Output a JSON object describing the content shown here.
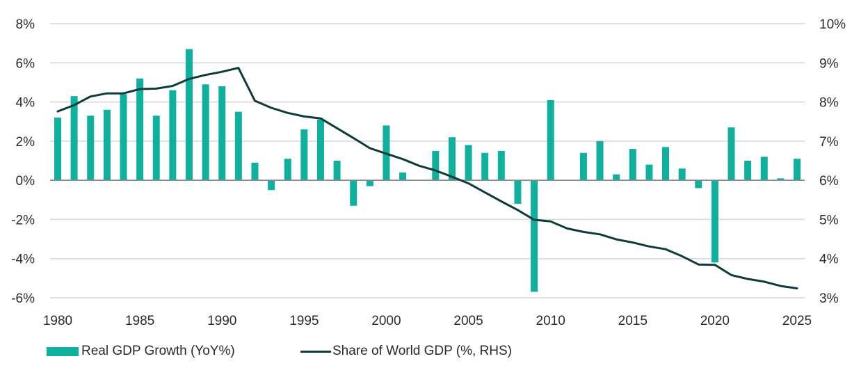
{
  "chart_data": {
    "type": "bar",
    "title": "",
    "xlabel": "",
    "ylabel": "",
    "y2label": "",
    "grid": true,
    "legend_position": "bottom-left",
    "x": [
      1980,
      1981,
      1982,
      1983,
      1984,
      1985,
      1986,
      1987,
      1988,
      1989,
      1990,
      1991,
      1992,
      1993,
      1994,
      1995,
      1996,
      1997,
      1998,
      1999,
      2000,
      2001,
      2002,
      2003,
      2004,
      2005,
      2006,
      2007,
      2008,
      2009,
      2010,
      2011,
      2012,
      2013,
      2014,
      2015,
      2016,
      2017,
      2018,
      2019,
      2020,
      2021,
      2022,
      2023,
      2024,
      2025
    ],
    "xlim": [
      1980,
      2025
    ],
    "x_ticks": [
      "1980",
      "1985",
      "1990",
      "1995",
      "2000",
      "2005",
      "2010",
      "2015",
      "2020",
      "2025"
    ],
    "x_tick_values": [
      1980,
      1985,
      1990,
      1995,
      2000,
      2005,
      2010,
      2015,
      2020,
      2025
    ],
    "ylim": [
      -6,
      8
    ],
    "y_ticks": [
      "-6%",
      "-4%",
      "-2%",
      "0%",
      "2%",
      "4%",
      "6%",
      "8%"
    ],
    "y_tick_values": [
      -6,
      -4,
      -2,
      0,
      2,
      4,
      6,
      8
    ],
    "y2lim": [
      3,
      10
    ],
    "y2_ticks": [
      "3%",
      "4%",
      "5%",
      "6%",
      "7%",
      "8%",
      "9%",
      "10%"
    ],
    "y2_tick_values": [
      3,
      4,
      5,
      6,
      7,
      8,
      9,
      10
    ],
    "series": [
      {
        "name": "Real GDP Growth (YoY%)",
        "type": "bar",
        "axis": "left",
        "color": "#10b09e",
        "values": [
          3.2,
          4.3,
          3.3,
          3.6,
          4.4,
          5.2,
          3.3,
          4.6,
          6.7,
          4.9,
          4.8,
          3.5,
          0.9,
          -0.5,
          1.1,
          2.6,
          3.1,
          1.0,
          -1.3,
          -0.3,
          2.8,
          0.4,
          0.0,
          1.5,
          2.2,
          1.8,
          1.4,
          1.5,
          -1.2,
          -5.7,
          4.1,
          0.0,
          1.4,
          2.0,
          0.3,
          1.6,
          0.8,
          1.7,
          0.6,
          -0.4,
          -4.2,
          2.7,
          1.0,
          1.2,
          0.1,
          1.1
        ]
      },
      {
        "name": "Share of World GDP (%, RHS)",
        "type": "line",
        "axis": "right",
        "color": "#0e3a38",
        "values": [
          7.76,
          7.92,
          8.14,
          8.22,
          8.22,
          8.33,
          8.34,
          8.41,
          8.59,
          8.69,
          8.77,
          8.87,
          8.03,
          7.85,
          7.72,
          7.63,
          7.58,
          7.33,
          7.08,
          6.82,
          6.68,
          6.54,
          6.37,
          6.25,
          6.09,
          5.92,
          5.69,
          5.46,
          5.24,
          4.99,
          4.95,
          4.77,
          4.68,
          4.62,
          4.49,
          4.41,
          4.31,
          4.24,
          4.06,
          3.85,
          3.84,
          3.58,
          3.48,
          3.41,
          3.3,
          3.24
        ]
      }
    ]
  },
  "legend": {
    "items": [
      {
        "label": "Real GDP Growth (YoY%)",
        "color": "#10b09e"
      },
      {
        "label": "Share of World GDP (%, RHS)",
        "color": "#0e3a38"
      }
    ]
  },
  "colors": {
    "grid": "#d6d6d6",
    "zero_line": "#8a8a8a"
  }
}
